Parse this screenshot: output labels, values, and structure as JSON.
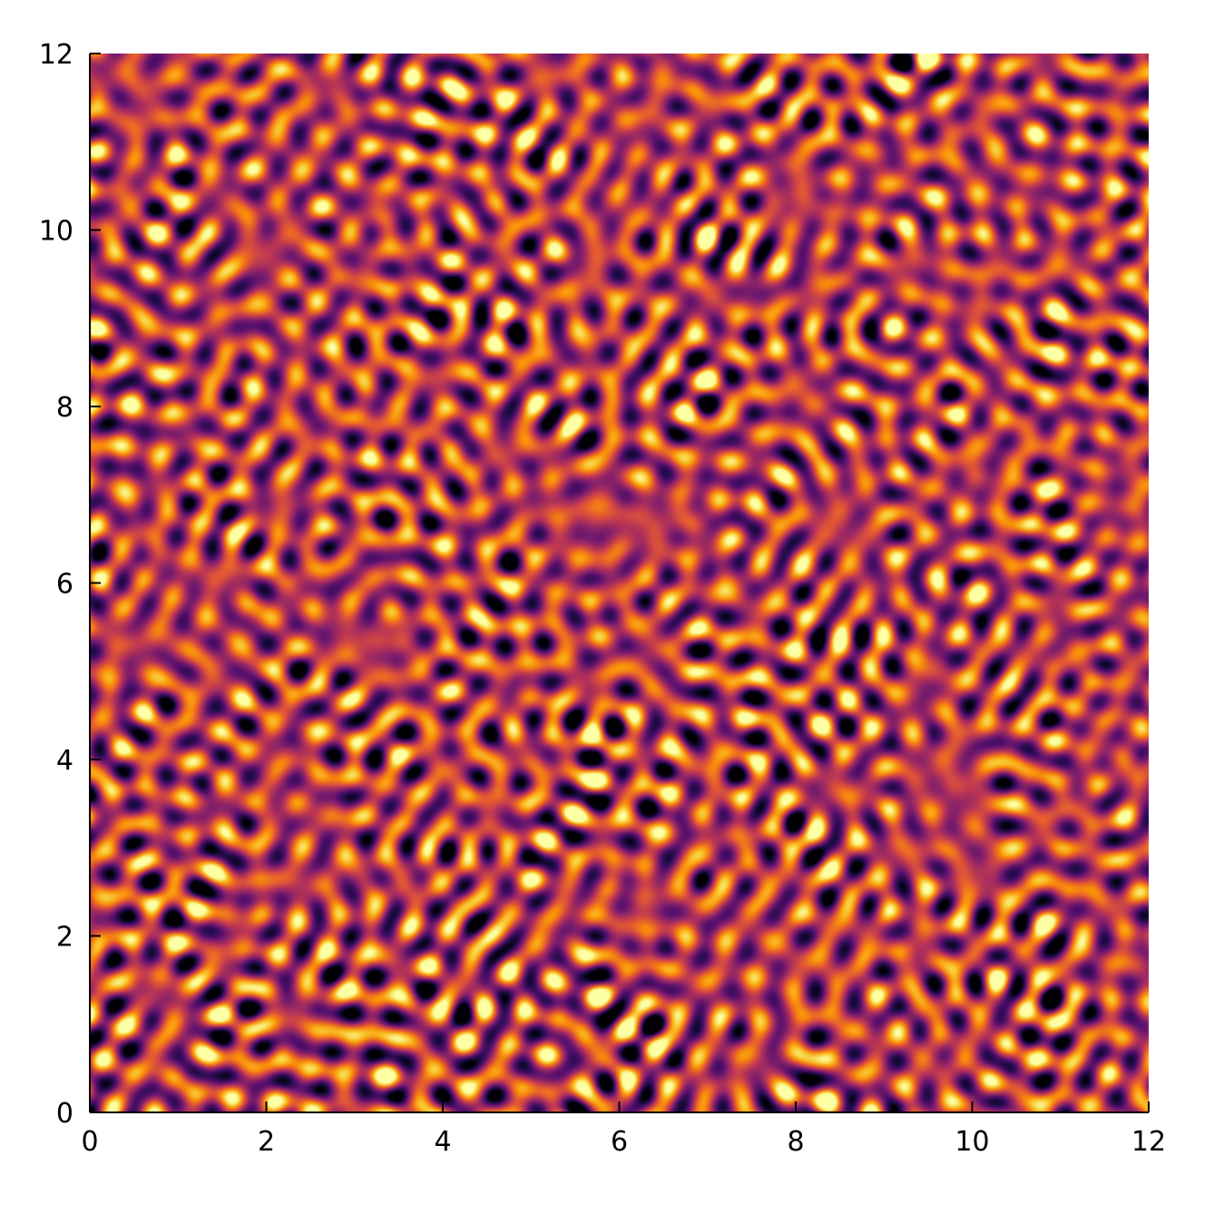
{
  "chart_data": {
    "type": "heatmap",
    "title": "",
    "xlabel": "",
    "ylabel": "",
    "xlim": [
      0,
      12
    ],
    "ylim": [
      0,
      12
    ],
    "x_ticks": [
      0,
      2,
      4,
      6,
      8,
      10,
      12
    ],
    "y_ticks": [
      0,
      2,
      4,
      6,
      8,
      10,
      12
    ],
    "x_tick_labels": [
      "0",
      "2",
      "4",
      "6",
      "8",
      "10",
      "12"
    ],
    "y_tick_labels": [
      "0",
      "2",
      "4",
      "6",
      "8",
      "10",
      "12"
    ],
    "colormap": "inferno",
    "colorbar": false,
    "grid": false,
    "pattern": "random labyrinth / spot field, approximately 25-30 features per axis unit span over 0-12"
  },
  "colors": {
    "axis": "#000000",
    "background": "#ffffff",
    "colormap_stops": [
      "#000004",
      "#1f0c48",
      "#550f6d",
      "#88226a",
      "#ba3655",
      "#e35933",
      "#f98e09",
      "#f8c932",
      "#fcffa4"
    ]
  }
}
